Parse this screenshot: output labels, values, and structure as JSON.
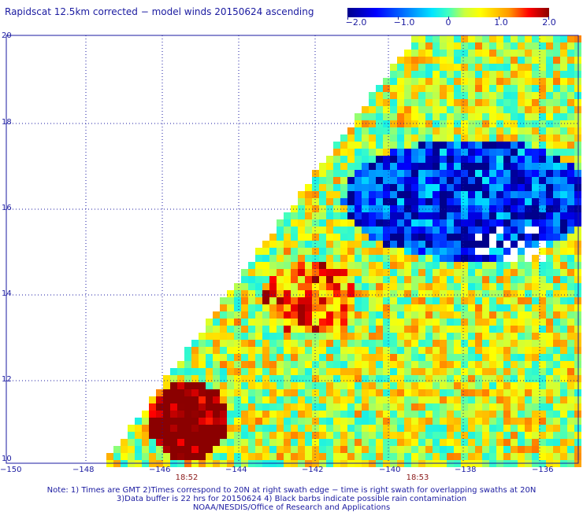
{
  "title": "Rapidscat 12.5km corrected − model winds 20150624 ascending",
  "colorbar": {
    "labels": [
      "−2.0",
      "−1.0",
      "0",
      "1.0",
      "2.0"
    ],
    "min": -2.0,
    "max": 2.0
  },
  "axes": {
    "lat_labels": [
      "20",
      "18",
      "16",
      "14",
      "12",
      "10"
    ],
    "lon_labels": [
      "−150",
      "−148",
      "−146",
      "−144",
      "−142",
      "−140",
      "−138",
      "−136"
    ],
    "lat_range": [
      10,
      20
    ],
    "lon_range": [
      -150,
      -135
    ]
  },
  "times": [
    "18:52",
    "18:53"
  ],
  "notes": [
    "Note: 1) Times are GMT 2)Times correspond to 20N at right swath edge − time is right swath for overlapping swaths at 20N",
    "3)Data buffer is 22 hrs for 20150624 4) Black barbs indicate possible rain contamination",
    "NOAA/NESDIS/Office of Research and Applications"
  ]
}
